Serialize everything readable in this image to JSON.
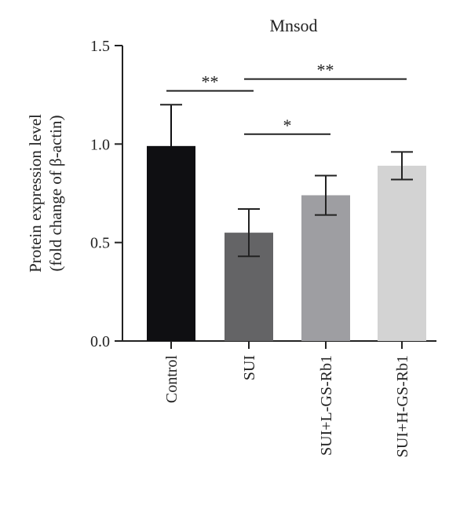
{
  "chart_data": {
    "type": "bar",
    "title": "Mnsod",
    "ylabel_lines": [
      "Protein expression level",
      "(fold change of β-actin)"
    ],
    "xlabel": "",
    "categories": [
      "Control",
      "SUI",
      "SUI+L-GS-Rb1",
      "SUI+H-GS-Rb1"
    ],
    "values": [
      0.99,
      0.55,
      0.74,
      0.89
    ],
    "error": [
      0.21,
      0.12,
      0.1,
      0.07
    ],
    "colors": [
      "#0f0f12",
      "#646466",
      "#9e9ea2",
      "#d3d3d3"
    ],
    "ylim": [
      0,
      1.5
    ],
    "yticks": [
      {
        "value": 0.0,
        "label": "0.0"
      },
      {
        "value": 0.5,
        "label": "0.5"
      },
      {
        "value": 1.0,
        "label": "1.0"
      },
      {
        "value": 1.5,
        "label": "1.5"
      }
    ],
    "grid": false,
    "significance": [
      {
        "from": 0,
        "to": 1,
        "y": 1.27,
        "label": "**"
      },
      {
        "from": 1,
        "to": 3,
        "y": 1.33,
        "label": "**"
      },
      {
        "from": 1,
        "to": 2,
        "y": 1.05,
        "label": "*"
      }
    ]
  }
}
